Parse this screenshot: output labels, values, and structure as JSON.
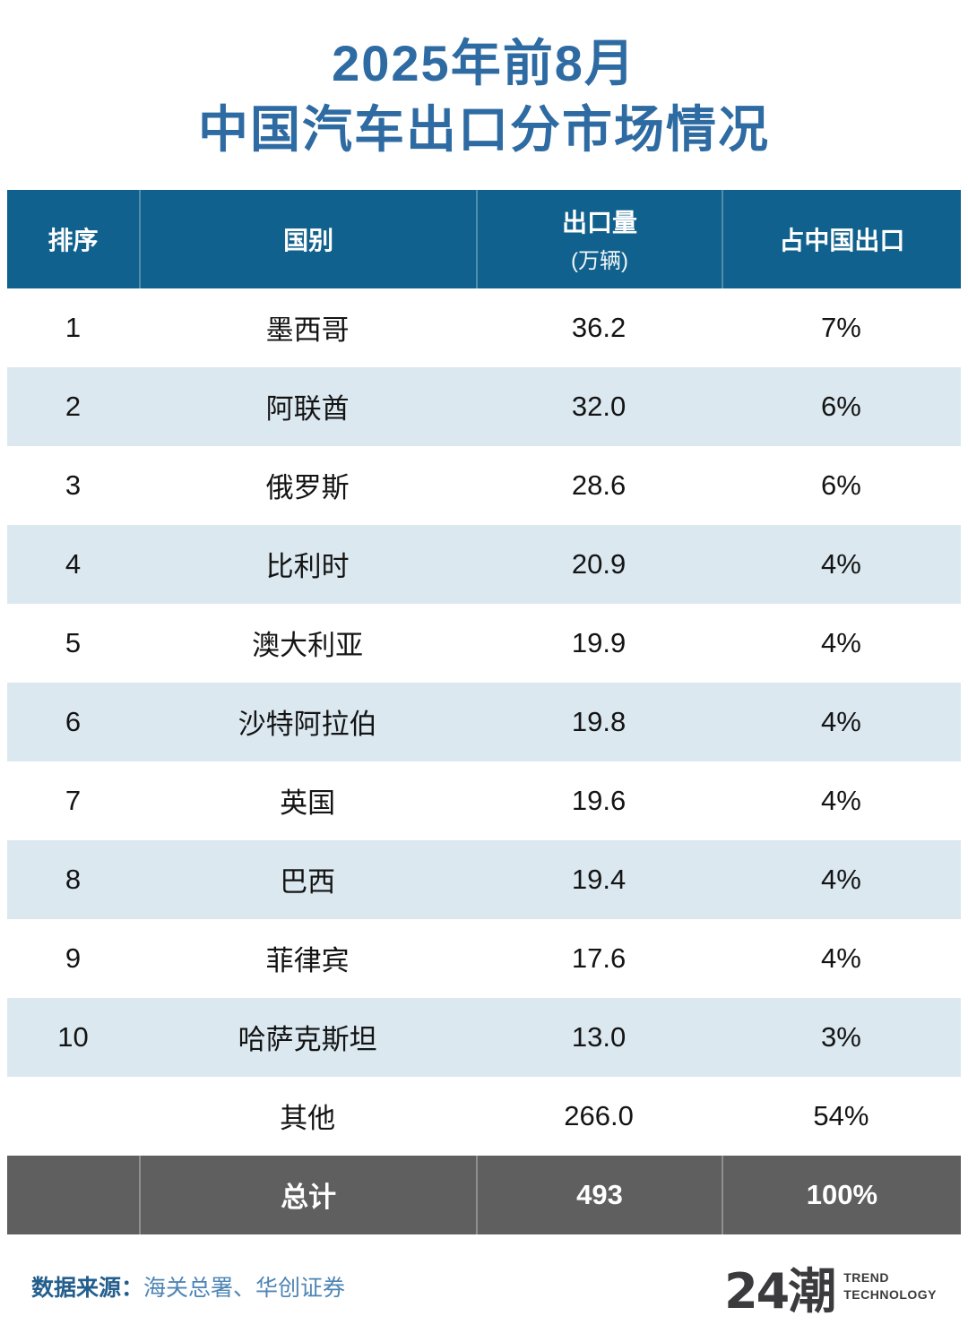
{
  "title": {
    "line1": "2025年前8月",
    "line2": "中国汽车出口分市场情况"
  },
  "table": {
    "columns": [
      {
        "label": "排序"
      },
      {
        "label": "国别"
      },
      {
        "label": "出口量",
        "sublabel": "(万辆)"
      },
      {
        "label": "占中国出口"
      }
    ],
    "rows": [
      {
        "rank": "1",
        "country": "墨西哥",
        "volume": "36.2",
        "share": "7%"
      },
      {
        "rank": "2",
        "country": "阿联酋",
        "volume": "32.0",
        "share": "6%"
      },
      {
        "rank": "3",
        "country": "俄罗斯",
        "volume": "28.6",
        "share": "6%"
      },
      {
        "rank": "4",
        "country": "比利时",
        "volume": "20.9",
        "share": "4%"
      },
      {
        "rank": "5",
        "country": "澳大利亚",
        "volume": "19.9",
        "share": "4%"
      },
      {
        "rank": "6",
        "country": "沙特阿拉伯",
        "volume": "19.8",
        "share": "4%"
      },
      {
        "rank": "7",
        "country": "英国",
        "volume": "19.6",
        "share": "4%"
      },
      {
        "rank": "8",
        "country": "巴西",
        "volume": "19.4",
        "share": "4%"
      },
      {
        "rank": "9",
        "country": "菲律宾",
        "volume": "17.6",
        "share": "4%"
      },
      {
        "rank": "10",
        "country": "哈萨克斯坦",
        "volume": "13.0",
        "share": "3%"
      },
      {
        "rank": "",
        "country": "其他",
        "volume": "266.0",
        "share": "54%"
      }
    ],
    "total": {
      "rank": "",
      "label": "总计",
      "volume": "493",
      "share": "100%"
    }
  },
  "footer": {
    "source_label": "数据来源：",
    "source_value": "海关总署、华创证券",
    "logo_text": "24潮",
    "logo_sub1": "TREND",
    "logo_sub2": "TECHNOLOGY"
  },
  "colors": {
    "title_blue": "#2e6ba2",
    "header_bg": "#10618d",
    "header_text": "#ffffff",
    "row_alt_bg": "#dbe8f0",
    "row_text": "#141414",
    "total_bg": "#5f5f5f",
    "total_text": "#ffffff",
    "source_label_color": "#235e8d",
    "source_value_color": "#4f85b5",
    "logo_color": "#3b3b3d"
  },
  "chart_data": {
    "type": "table",
    "title": "2025年前8月中国汽车出口分市场情况",
    "columns": [
      "排序",
      "国别",
      "出口量(万辆)",
      "占中国出口"
    ],
    "rows": [
      [
        1,
        "墨西哥",
        36.2,
        "7%"
      ],
      [
        2,
        "阿联酋",
        32.0,
        "6%"
      ],
      [
        3,
        "俄罗斯",
        28.6,
        "6%"
      ],
      [
        4,
        "比利时",
        20.9,
        "4%"
      ],
      [
        5,
        "澳大利亚",
        19.9,
        "4%"
      ],
      [
        6,
        "沙特阿拉伯",
        19.8,
        "4%"
      ],
      [
        7,
        "英国",
        19.6,
        "4%"
      ],
      [
        8,
        "巴西",
        19.4,
        "4%"
      ],
      [
        9,
        "菲律宾",
        17.6,
        "4%"
      ],
      [
        10,
        "哈萨克斯坦",
        13.0,
        "3%"
      ],
      [
        null,
        "其他",
        266.0,
        "54%"
      ],
      [
        null,
        "总计",
        493,
        "100%"
      ]
    ],
    "source": "海关总署、华创证券",
    "layout_hints": {
      "alternating_rows": true,
      "total_row_highlighted": true
    }
  }
}
